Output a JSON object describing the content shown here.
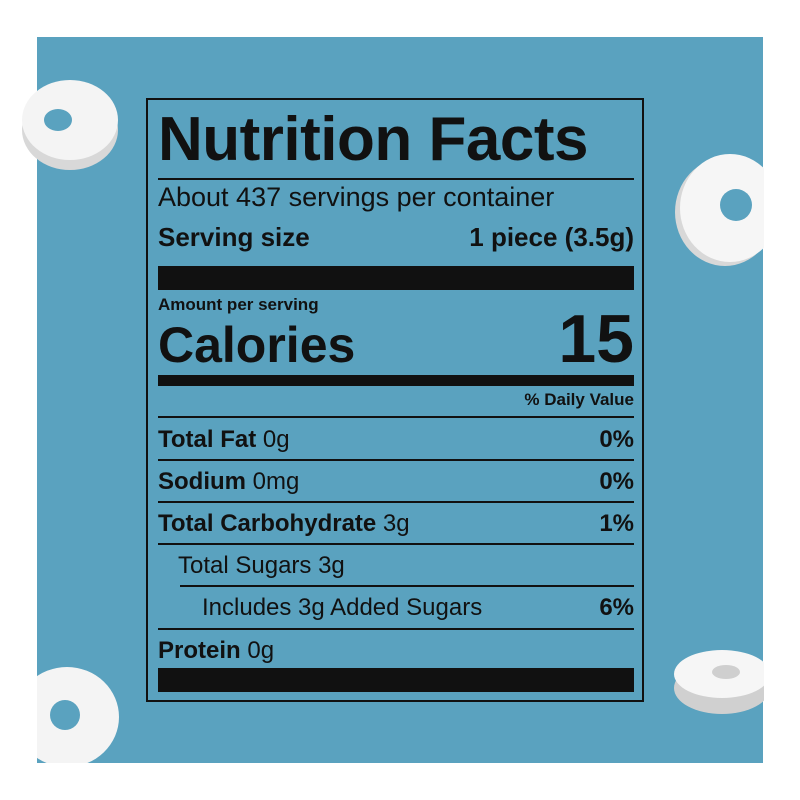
{
  "colors": {
    "background": "#5aa2bf",
    "text": "#111111",
    "candy": "#f4f4f4"
  },
  "label": {
    "title": "Nutrition Facts",
    "servings": "About 437 servings per container",
    "serving_size_label": "Serving size",
    "serving_size_value": "1 piece (3.5g)",
    "amount_per_serving": "Amount per serving",
    "calories_label": "Calories",
    "calories_value": "15",
    "daily_value_header": "% Daily Value",
    "rows": [
      {
        "name": "Total Fat",
        "amount": "0g",
        "dv": "0%"
      },
      {
        "name": "Sodium",
        "amount": "0mg",
        "dv": "0%"
      },
      {
        "name": "Total Carbohydrate",
        "amount": "3g",
        "dv": "1%"
      },
      {
        "name": "Total Sugars 3g",
        "amount": "",
        "dv": ""
      },
      {
        "name": "Includes 3g Added Sugars",
        "amount": "",
        "dv": "6%"
      },
      {
        "name": "Protein",
        "amount": "0g",
        "dv": ""
      }
    ]
  }
}
